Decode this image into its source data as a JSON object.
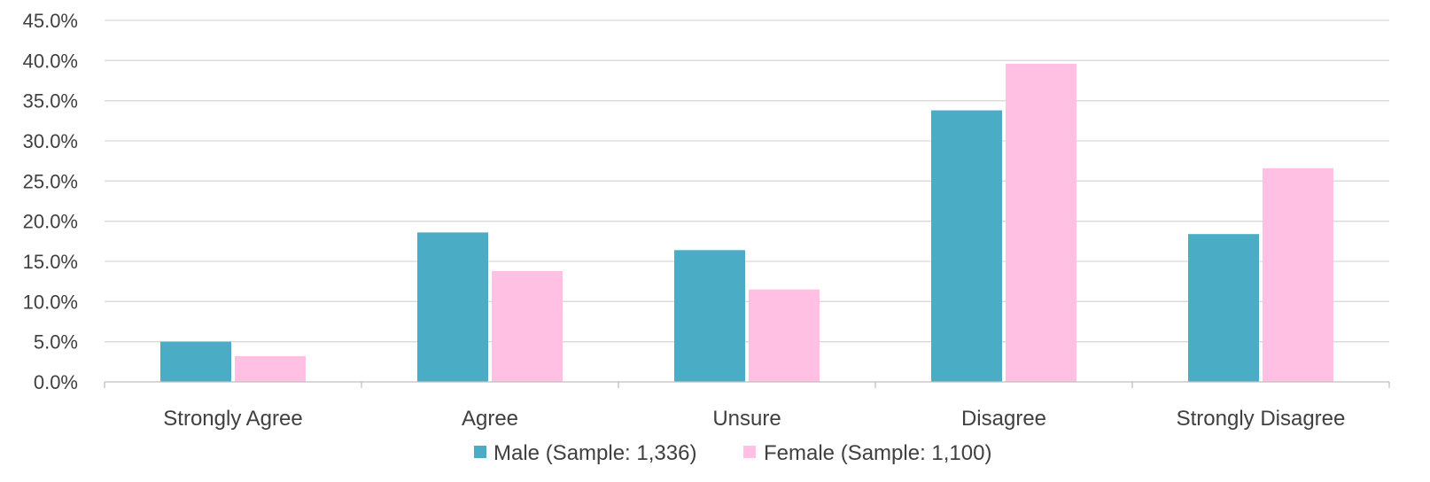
{
  "chart_data": {
    "type": "bar",
    "categories": [
      "Strongly Agree",
      "Agree",
      "Unsure",
      "Disagree",
      "Strongly Disagree"
    ],
    "series": [
      {
        "name": "Male (Sample: 1,336)",
        "color": "#4BACC6",
        "values": [
          5.0,
          18.6,
          16.4,
          33.8,
          18.4
        ]
      },
      {
        "name": "Female (Sample: 1,100)",
        "color": "#FFC0E3",
        "values": [
          3.2,
          13.8,
          11.5,
          39.6,
          26.6
        ]
      }
    ],
    "ylim": [
      0,
      45
    ],
    "yticks": [
      0,
      5,
      10,
      15,
      20,
      25,
      30,
      35,
      40,
      45
    ],
    "ytick_labels": [
      "0.0%",
      "5.0%",
      "10.0%",
      "15.0%",
      "20.0%",
      "25.0%",
      "30.0%",
      "35.0%",
      "40.0%",
      "45.0%"
    ],
    "title": "",
    "xlabel": "",
    "ylabel": "",
    "grid": true,
    "legend_position": "bottom"
  }
}
